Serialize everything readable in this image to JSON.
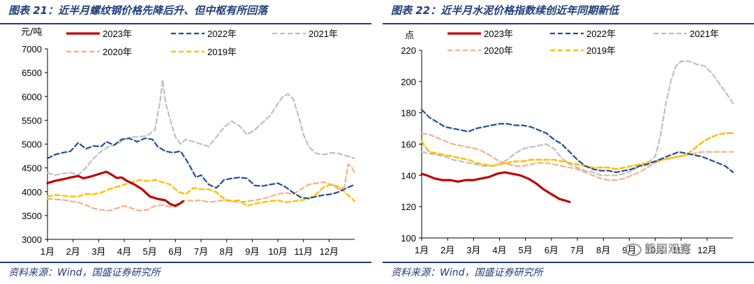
{
  "panels": [
    {
      "title": "图表 21：近半月螺纹钢价格先降后升、但中枢有所回落",
      "source": "资料来源：Wind，国盛证券研究所",
      "chart_data": {
        "type": "line",
        "yunit": "元/吨",
        "ylim": [
          3000,
          7000
        ],
        "yticks": [
          3000,
          3500,
          4000,
          4500,
          5000,
          5500,
          6000,
          6500,
          7000
        ],
        "xticks": [
          "1月",
          "2月",
          "3月",
          "4月",
          "5月",
          "6月",
          "7月",
          "8月",
          "9月",
          "10月",
          "11月",
          "12月"
        ],
        "xlim": [
          1,
          13
        ],
        "series": [
          {
            "name": "2023年",
            "color": "#c00000",
            "style": "solid",
            "width": 3.2,
            "x": [
              1,
              1.3,
              1.6,
              1.9,
              2.2,
              2.4,
              2.7,
              3.0,
              3.3,
              3.5,
              3.7,
              3.9,
              4.1,
              4.4,
              4.7,
              5.0,
              5.3,
              5.6,
              5.8,
              6.0,
              6.2,
              6.3
            ],
            "y": [
              4180,
              4230,
              4260,
              4300,
              4330,
              4280,
              4320,
              4370,
              4420,
              4360,
              4290,
              4300,
              4230,
              4150,
              4050,
              3900,
              3850,
              3820,
              3740,
              3700,
              3760,
              3800
            ]
          },
          {
            "name": "2022年",
            "color": "#1f4e96",
            "style": "dash",
            "width": 2.2,
            "x": [
              1,
              1.3,
              1.6,
              1.9,
              2.2,
              2.5,
              2.8,
              3.1,
              3.3,
              3.6,
              3.9,
              4.2,
              4.5,
              4.8,
              5.1,
              5.3,
              5.6,
              5.9,
              6.2,
              6.5,
              6.8,
              7.0,
              7.3,
              7.6,
              7.9,
              8.2,
              8.5,
              8.8,
              9.1,
              9.4,
              9.7,
              10.0,
              10.3,
              10.6,
              10.9,
              11.2,
              11.5,
              11.8,
              12.1,
              12.4,
              12.7,
              13.0
            ],
            "y": [
              4700,
              4780,
              4820,
              4850,
              5030,
              4900,
              4960,
              4950,
              5050,
              4980,
              5100,
              5120,
              5050,
              5120,
              5100,
              4950,
              4850,
              4820,
              4850,
              4600,
              4300,
              4350,
              4150,
              4080,
              4250,
              4280,
              4300,
              4280,
              4130,
              4120,
              4150,
              4180,
              4100,
              3980,
              3880,
              3860,
              3900,
              3930,
              3950,
              4000,
              4080,
              4150
            ]
          },
          {
            "name": "2021年",
            "color": "#bfbfbf",
            "style": "dash",
            "width": 2.2,
            "x": [
              1,
              1.3,
              1.6,
              1.9,
              2.2,
              2.5,
              2.8,
              3.1,
              3.4,
              3.7,
              4.0,
              4.3,
              4.6,
              4.9,
              5.2,
              5.4,
              5.5,
              5.6,
              5.8,
              6.0,
              6.2,
              6.4,
              6.7,
              7.0,
              7.3,
              7.6,
              7.9,
              8.2,
              8.5,
              8.8,
              9.1,
              9.4,
              9.7,
              10.0,
              10.2,
              10.4,
              10.6,
              10.8,
              11.0,
              11.2,
              11.5,
              11.8,
              12.1,
              12.4,
              12.7,
              13.0
            ],
            "y": [
              4400,
              4350,
              4380,
              4400,
              4350,
              4500,
              4700,
              4850,
              4950,
              4990,
              5100,
              5150,
              5150,
              5180,
              5300,
              5900,
              6350,
              5900,
              5500,
              5150,
              5000,
              5100,
              5050,
              5000,
              4950,
              5150,
              5350,
              5480,
              5380,
              5200,
              5300,
              5450,
              5600,
              5850,
              6000,
              6050,
              5950,
              5600,
              5200,
              4950,
              4800,
              4780,
              4820,
              4800,
              4750,
              4700
            ]
          },
          {
            "name": "2020年",
            "color": "#f4b183",
            "style": "dash",
            "width": 2.2,
            "x": [
              1,
              1.3,
              1.6,
              1.9,
              2.2,
              2.5,
              2.8,
              3.1,
              3.4,
              3.7,
              4.0,
              4.3,
              4.6,
              4.9,
              5.2,
              5.5,
              5.8,
              6.1,
              6.4,
              6.7,
              7.0,
              7.3,
              7.6,
              7.9,
              8.2,
              8.5,
              8.8,
              9.1,
              9.4,
              9.7,
              10.0,
              10.3,
              10.6,
              10.9,
              11.2,
              11.5,
              11.8,
              12.1,
              12.4,
              12.6,
              12.75,
              12.9,
              13.0
            ],
            "y": [
              3850,
              3840,
              3830,
              3800,
              3780,
              3720,
              3650,
              3620,
              3600,
              3650,
              3700,
              3650,
              3600,
              3620,
              3700,
              3720,
              3680,
              3750,
              3820,
              3810,
              3820,
              3780,
              3800,
              3820,
              3800,
              3780,
              3800,
              3820,
              3850,
              3900,
              3950,
              3980,
              3950,
              4050,
              4150,
              4180,
              4200,
              4150,
              4050,
              4100,
              4580,
              4500,
              4400
            ]
          },
          {
            "name": "2019年",
            "color": "#ffc000",
            "style": "dash",
            "width": 2.4,
            "x": [
              1,
              1.3,
              1.6,
              1.9,
              2.2,
              2.5,
              2.8,
              3.1,
              3.4,
              3.7,
              4.0,
              4.3,
              4.6,
              4.9,
              5.2,
              5.5,
              5.8,
              6.1,
              6.4,
              6.7,
              7.0,
              7.3,
              7.6,
              7.9,
              8.2,
              8.5,
              8.8,
              9.1,
              9.4,
              9.7,
              10.0,
              10.3,
              10.6,
              10.9,
              11.2,
              11.5,
              11.8,
              12.1,
              12.4,
              12.7,
              13.0
            ],
            "y": [
              3900,
              3930,
              3920,
              3900,
              3900,
              3950,
              3950,
              3980,
              4050,
              4100,
              4150,
              4200,
              4250,
              4220,
              4250,
              4200,
              4150,
              4000,
              3950,
              4080,
              4050,
              4050,
              3990,
              3850,
              3800,
              3820,
              3700,
              3750,
              3780,
              3800,
              3820,
              3780,
              3800,
              3820,
              3850,
              3950,
              4100,
              4150,
              4100,
              3950,
              3800
            ]
          }
        ]
      }
    },
    {
      "title": "图表 22：近半月水泥价格指数续创近年同期新低",
      "source": "资料来源：Wind，国盛证券研究所",
      "chart_data": {
        "type": "line",
        "yunit": "点",
        "ylim": [
          100,
          220
        ],
        "yticks": [
          100,
          120,
          140,
          160,
          180,
          200,
          220
        ],
        "xticks": [
          "1月",
          "2月",
          "3月",
          "4月",
          "5月",
          "6月",
          "7月",
          "8月",
          "9月",
          "10月",
          "11月",
          "12月"
        ],
        "xlim": [
          1,
          13
        ],
        "series": [
          {
            "name": "2023年",
            "color": "#c00000",
            "style": "solid",
            "width": 3.2,
            "x": [
              1,
              1.2,
              1.5,
              1.8,
              2.1,
              2.4,
              2.7,
              3.0,
              3.3,
              3.6,
              3.9,
              4.2,
              4.5,
              4.8,
              5.1,
              5.4,
              5.7,
              6.0,
              6.3,
              6.5,
              6.7
            ],
            "y": [
              141,
              140,
              138,
              137,
              137,
              136,
              137,
              137,
              138,
              139,
              141,
              142,
              141,
              140,
              138,
              135,
              131,
              128,
              125,
              124,
              123
            ]
          },
          {
            "name": "2022年",
            "color": "#1f4e96",
            "style": "dash",
            "width": 2.2,
            "x": [
              1,
              1.3,
              1.6,
              1.9,
              2.2,
              2.5,
              2.8,
              3.1,
              3.4,
              3.7,
              4.0,
              4.3,
              4.6,
              4.9,
              5.2,
              5.5,
              5.8,
              6.1,
              6.4,
              6.7,
              7.0,
              7.3,
              7.6,
              7.9,
              8.2,
              8.5,
              8.8,
              9.1,
              9.4,
              9.7,
              10.0,
              10.3,
              10.6,
              10.9,
              11.2,
              11.5,
              11.8,
              12.1,
              12.4,
              12.7,
              13.0
            ],
            "y": [
              182,
              177,
              174,
              171,
              170,
              169,
              168,
              170,
              171,
              172,
              173,
              173,
              172,
              172,
              171,
              169,
              167,
              163,
              160,
              155,
              150,
              146,
              144,
              143,
              143,
              142,
              143,
              144,
              146,
              147,
              149,
              151,
              153,
              155,
              154,
              153,
              152,
              150,
              148,
              146,
              142
            ]
          },
          {
            "name": "2021年",
            "color": "#bfbfbf",
            "style": "dash",
            "width": 2.2,
            "x": [
              1,
              1.3,
              1.6,
              1.9,
              2.2,
              2.5,
              2.8,
              3.1,
              3.4,
              3.7,
              4.0,
              4.3,
              4.6,
              4.9,
              5.2,
              5.5,
              5.8,
              6.1,
              6.4,
              6.7,
              7.0,
              7.3,
              7.6,
              7.9,
              8.2,
              8.5,
              8.8,
              9.1,
              9.4,
              9.7,
              10.0,
              10.2,
              10.4,
              10.6,
              10.8,
              11.0,
              11.3,
              11.6,
              11.9,
              12.2,
              12.5,
              12.8,
              13.0
            ],
            "y": [
              155,
              154,
              153,
              152,
              150,
              149,
              148,
              147,
              146,
              146,
              147,
              150,
              154,
              157,
              158,
              159,
              160,
              157,
              151,
              147,
              145,
              143,
              142,
              140,
              140,
              140,
              141,
              143,
              146,
              148,
              152,
              165,
              185,
              200,
              210,
              213,
              213,
              211,
              210,
              205,
              198,
              191,
              186
            ]
          },
          {
            "name": "2020年",
            "color": "#f4b183",
            "style": "dash",
            "width": 2.2,
            "x": [
              1,
              1.3,
              1.6,
              1.9,
              2.2,
              2.5,
              2.8,
              3.1,
              3.4,
              3.7,
              4.0,
              4.3,
              4.6,
              4.9,
              5.2,
              5.5,
              5.8,
              6.1,
              6.4,
              6.7,
              7.0,
              7.3,
              7.6,
              7.9,
              8.2,
              8.5,
              8.8,
              9.1,
              9.4,
              9.7,
              10.0,
              10.3,
              10.6,
              10.9,
              11.2,
              11.5,
              11.8,
              12.1,
              12.4,
              12.7,
              13.0
            ],
            "y": [
              167,
              166,
              164,
              162,
              160,
              159,
              158,
              157,
              155,
              152,
              149,
              147,
              146,
              146,
              147,
              148,
              148,
              147,
              146,
              145,
              144,
              142,
              140,
              138,
              137,
              137,
              138,
              140,
              142,
              145,
              148,
              150,
              151,
              152,
              153,
              154,
              155,
              155,
              155,
              155,
              155
            ]
          },
          {
            "name": "2019年",
            "color": "#ffc000",
            "style": "dash",
            "width": 2.6,
            "x": [
              1,
              1.1,
              1.3,
              1.6,
              1.9,
              2.2,
              2.5,
              2.8,
              3.1,
              3.4,
              3.7,
              4.0,
              4.3,
              4.6,
              4.9,
              5.2,
              5.5,
              5.8,
              6.1,
              6.4,
              6.7,
              7.0,
              7.3,
              7.6,
              7.9,
              8.2,
              8.5,
              8.8,
              9.1,
              9.4,
              9.7,
              10.0,
              10.3,
              10.6,
              10.9,
              11.2,
              11.5,
              11.8,
              12.1,
              12.4,
              12.7,
              13.0
            ],
            "y": [
              162,
              159,
              155,
              154,
              153,
              152,
              151,
              150,
              148,
              147,
              146,
              147,
              148,
              149,
              149,
              150,
              150,
              150,
              150,
              149,
              148,
              147,
              146,
              145,
              145,
              145,
              144,
              145,
              146,
              147,
              148,
              149,
              150,
              151,
              152,
              153,
              157,
              161,
              164,
              166,
              167,
              167
            ]
          }
        ]
      }
    }
  ],
  "watermark": "熊园观察"
}
